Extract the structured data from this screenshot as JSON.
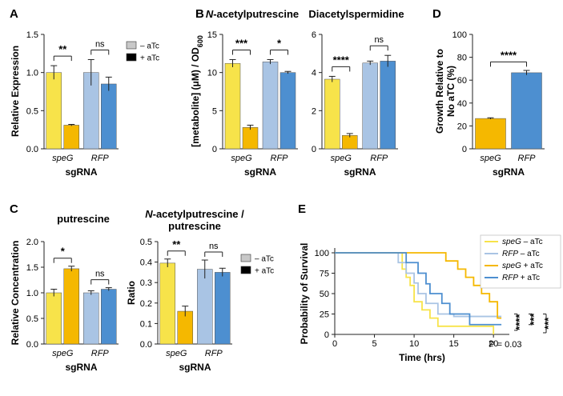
{
  "colors": {
    "speG_minus": "#f7e34a",
    "speG_plus": "#f5b800",
    "rfp_minus": "#a9c4e4",
    "rfp_plus": "#4d8fd0",
    "legend_minus": "#c8c8c8",
    "legend_plus": "#000000",
    "surv_speG_minus": "#f7e34a",
    "surv_rfp_minus": "#a9c4e4",
    "surv_speG_plus": "#f5b800",
    "surv_rfp_plus": "#4d8fd0"
  },
  "panels": {
    "A": "A",
    "B": "B",
    "C": "C",
    "D": "D",
    "E": "E"
  },
  "chart_data": [
    {
      "id": "A",
      "type": "bar",
      "title": "",
      "xlabel": "sgRNA",
      "ylabel": "Relative Expression",
      "ylim": [
        0,
        1.5
      ],
      "yticks": [
        "0.0",
        "0.5",
        "1.0",
        "1.5"
      ],
      "categories": [
        "speG",
        "RFP"
      ],
      "series": [
        {
          "name": "– aTc",
          "values": [
            1.0,
            1.0
          ],
          "errors": [
            0.09,
            0.17
          ]
        },
        {
          "name": "+ aTc",
          "values": [
            0.31,
            0.85
          ],
          "errors": [
            0.01,
            0.09
          ]
        }
      ],
      "significance": [
        "**",
        "ns"
      ],
      "legend": [
        "– aTc",
        "+ aTc"
      ]
    },
    {
      "id": "B1",
      "type": "bar",
      "title": "N-acetylputrescine",
      "title_italic_prefix": "N",
      "title_rest": "-acetylputrescine",
      "xlabel": "sgRNA",
      "ylabel": "[metabolite] (μM) / OD",
      "ylabel_sub": "600",
      "ylim": [
        0,
        15
      ],
      "yticks": [
        "0",
        "5",
        "10",
        "15"
      ],
      "categories": [
        "speG",
        "RFP"
      ],
      "series": [
        {
          "name": "– aTc",
          "values": [
            11.2,
            11.4
          ],
          "errors": [
            0.5,
            0.3
          ]
        },
        {
          "name": "+ aTc",
          "values": [
            2.8,
            10.0
          ],
          "errors": [
            0.3,
            0.15
          ]
        }
      ],
      "significance": [
        "***",
        "*"
      ]
    },
    {
      "id": "B2",
      "type": "bar",
      "title": "Diacetylspermidine",
      "xlabel": "sgRNA",
      "ylabel": "",
      "ylim": [
        0,
        6
      ],
      "yticks": [
        "0",
        "2",
        "4",
        "6"
      ],
      "categories": [
        "speG",
        "RFP"
      ],
      "series": [
        {
          "name": "– aTc",
          "values": [
            3.65,
            4.5
          ],
          "errors": [
            0.15,
            0.1
          ]
        },
        {
          "name": "+ aTc",
          "values": [
            0.7,
            4.6
          ],
          "errors": [
            0.1,
            0.3
          ]
        }
      ],
      "significance": [
        "****",
        "ns"
      ]
    },
    {
      "id": "C1",
      "type": "bar",
      "title": "putrescine",
      "xlabel": "sgRNA",
      "ylabel": "Relative Concentration",
      "ylim": [
        0,
        2.0
      ],
      "yticks": [
        "0.0",
        "0.5",
        "1.0",
        "1.5",
        "2.0"
      ],
      "categories": [
        "speG",
        "RFP"
      ],
      "series": [
        {
          "name": "– aTc",
          "values": [
            1.0,
            1.0
          ],
          "errors": [
            0.07,
            0.04
          ]
        },
        {
          "name": "+ aTc",
          "values": [
            1.47,
            1.07
          ],
          "errors": [
            0.05,
            0.03
          ]
        }
      ],
      "significance": [
        "*",
        "ns"
      ]
    },
    {
      "id": "C2",
      "type": "bar",
      "title_line1_italic": "N",
      "title_line1_rest": "-acetylputrescine /",
      "title_line2": "putrescine",
      "xlabel": "sgRNA",
      "ylabel": "Ratio",
      "ylim": [
        0,
        0.5
      ],
      "yticks": [
        "0.0",
        "0.1",
        "0.2",
        "0.3",
        "0.4",
        "0.5"
      ],
      "categories": [
        "speG",
        "RFP"
      ],
      "series": [
        {
          "name": "– aTc",
          "values": [
            0.395,
            0.365
          ],
          "errors": [
            0.02,
            0.045
          ]
        },
        {
          "name": "+ aTc",
          "values": [
            0.16,
            0.35
          ],
          "errors": [
            0.025,
            0.02
          ]
        }
      ],
      "significance": [
        "**",
        "ns"
      ],
      "legend": [
        "– aTc",
        "+ aTc"
      ]
    },
    {
      "id": "D",
      "type": "bar",
      "xlabel": "sgRNA",
      "ylabel_line1": "Growth Relative to",
      "ylabel_line2": "No  aTC (%)",
      "ylim": [
        0,
        100
      ],
      "yticks": [
        "0",
        "20",
        "40",
        "60",
        "80",
        "100"
      ],
      "categories": [
        "speG",
        "RFP"
      ],
      "values": [
        26.5,
        66.5
      ],
      "errors": [
        0.6,
        2.0
      ],
      "significance": [
        "****"
      ]
    },
    {
      "id": "E",
      "type": "line",
      "xlabel": "Time (hrs)",
      "ylabel": "Probability of Survival",
      "xlim": [
        0,
        22
      ],
      "ylim": [
        0,
        100
      ],
      "xticks": [
        "0",
        "5",
        "10",
        "15",
        "20"
      ],
      "yticks": [
        "0",
        "25",
        "50",
        "75",
        "100"
      ],
      "annotation": "P = 0.03",
      "significance": [
        "****",
        "***",
        "***"
      ],
      "series": [
        {
          "name": "speG – aTc",
          "label_italic": "speG",
          "label_rest": " – aTc",
          "t": [
            0,
            8,
            8.5,
            9,
            9.5,
            10,
            11,
            12,
            13,
            19,
            20
          ],
          "s": [
            100,
            100,
            80,
            70,
            60,
            40,
            30,
            20,
            10,
            10,
            0
          ]
        },
        {
          "name": "RFP – aTc",
          "label_italic": "RFP",
          "label_rest": " – aTc",
          "t": [
            0,
            7.5,
            8,
            9,
            10,
            10.5,
            11.5,
            13,
            15,
            21
          ],
          "s": [
            100,
            100,
            88,
            75,
            63,
            50,
            38,
            25,
            22,
            22
          ]
        },
        {
          "name": "speG + aTc",
          "label_italic": "speG",
          "label_rest": " + aTc",
          "t": [
            0,
            13,
            14,
            15.5,
            16.5,
            17.5,
            18.5,
            19.5,
            20.5,
            21
          ],
          "s": [
            100,
            100,
            90,
            80,
            70,
            60,
            50,
            40,
            20,
            20
          ]
        },
        {
          "name": "RFP + aTc",
          "label_italic": "RFP",
          "label_rest": " + aTc",
          "t": [
            0,
            8,
            9,
            10.5,
            11.5,
            12,
            13.5,
            14.5,
            17,
            21
          ],
          "s": [
            100,
            100,
            88,
            75,
            62,
            50,
            38,
            25,
            12,
            12
          ]
        }
      ]
    }
  ]
}
